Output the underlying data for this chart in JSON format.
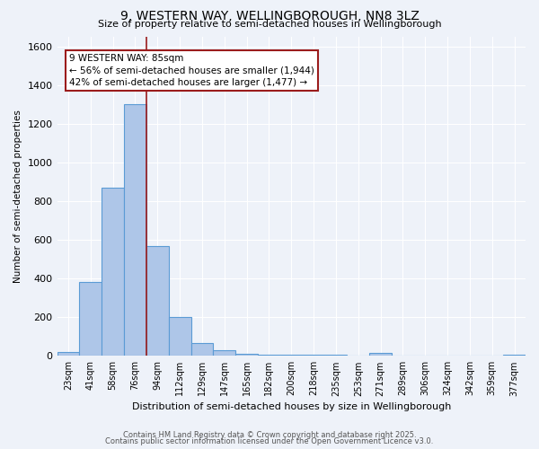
{
  "title": "9, WESTERN WAY, WELLINGBOROUGH, NN8 3LZ",
  "subtitle": "Size of property relative to semi-detached houses in Wellingborough",
  "xlabel": "Distribution of semi-detached houses by size in Wellingborough",
  "ylabel": "Number of semi-detached properties",
  "categories": [
    "23sqm",
    "41sqm",
    "58sqm",
    "76sqm",
    "94sqm",
    "112sqm",
    "129sqm",
    "147sqm",
    "165sqm",
    "182sqm",
    "200sqm",
    "218sqm",
    "235sqm",
    "253sqm",
    "271sqm",
    "289sqm",
    "306sqm",
    "324sqm",
    "342sqm",
    "359sqm",
    "377sqm"
  ],
  "values": [
    20,
    380,
    870,
    1300,
    570,
    200,
    65,
    28,
    12,
    5,
    5,
    5,
    5,
    0,
    15,
    0,
    0,
    0,
    0,
    0,
    5
  ],
  "bar_color": "#aec6e8",
  "bar_edge_color": "#5b9bd5",
  "highlight_line_color": "#9b1c1c",
  "annotation_text": "9 WESTERN WAY: 85sqm\n← 56% of semi-detached houses are smaller (1,944)\n42% of semi-detached houses are larger (1,477) →",
  "annotation_box_color": "#ffffff",
  "annotation_box_edge": "#9b1c1c",
  "ylim": [
    0,
    1650
  ],
  "yticks": [
    0,
    200,
    400,
    600,
    800,
    1000,
    1200,
    1400,
    1600
  ],
  "footer1": "Contains HM Land Registry data © Crown copyright and database right 2025.",
  "footer2": "Contains public sector information licensed under the Open Government Licence v3.0.",
  "bg_color": "#eef2f9",
  "grid_color": "#ffffff"
}
